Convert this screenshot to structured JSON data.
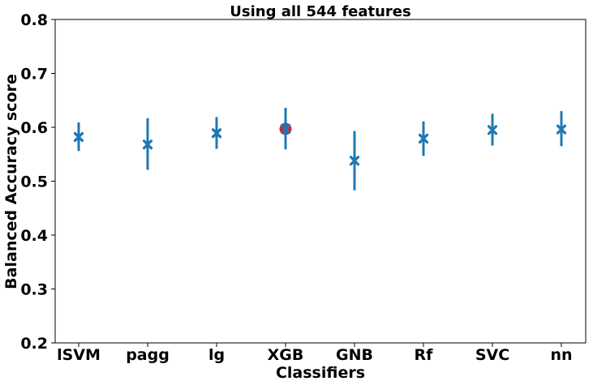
{
  "chart_data": {
    "type": "errorbar",
    "title": "Using all 544 features",
    "xlabel": "Classifiers",
    "ylabel": "Balanced Accuracy score",
    "ylim": [
      0.2,
      0.8
    ],
    "yticks": [
      "0.2",
      "0.3",
      "0.4",
      "0.5",
      "0.6",
      "0.7",
      "0.8"
    ],
    "grid": false,
    "categories": [
      "lSVM",
      "pagg",
      "lg",
      "XGB",
      "GNB",
      "Rf",
      "SVC",
      "nn"
    ],
    "series": [
      {
        "values": [
          0.582,
          0.568,
          0.589,
          0.597,
          0.538,
          0.579,
          0.595,
          0.596
        ],
        "lower": [
          0.556,
          0.521,
          0.56,
          0.559,
          0.483,
          0.547,
          0.566,
          0.565
        ],
        "upper": [
          0.609,
          0.617,
          0.619,
          0.636,
          0.593,
          0.611,
          0.625,
          0.63
        ]
      }
    ],
    "highlight": {
      "category": "XGB",
      "value": 0.597
    },
    "colors": {
      "series": "#1f77b4",
      "highlight": "#d62728"
    }
  }
}
